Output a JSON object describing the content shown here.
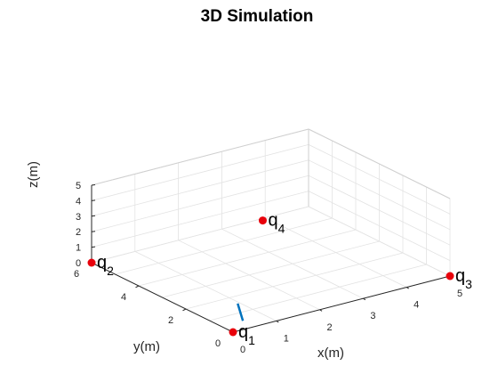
{
  "chart_data": {
    "type": "scatter",
    "title": "3D Simulation",
    "xlabel": "x(m)",
    "ylabel": "y(m)",
    "zlabel": "z(m)",
    "xlim": [
      0,
      5
    ],
    "ylim": [
      0,
      6
    ],
    "zlim": [
      0,
      5
    ],
    "xticks": [
      "0",
      "1",
      "2",
      "3",
      "4",
      "5"
    ],
    "yticks": [
      "0",
      "2",
      "4",
      "6"
    ],
    "zticks": [
      "0",
      "1",
      "2",
      "3",
      "4",
      "5"
    ],
    "grid": true,
    "view": "3d-isometric",
    "points": [
      {
        "label": "q",
        "sub": "1",
        "x": 0,
        "y": 0,
        "z": 0
      },
      {
        "label": "q",
        "sub": "2",
        "x": 0,
        "y": 6,
        "z": 0
      },
      {
        "label": "q",
        "sub": "3",
        "x": 5,
        "y": 0,
        "z": 0
      },
      {
        "label": "q",
        "sub": "4",
        "x": 1.5,
        "y": 1.5,
        "z": 5
      }
    ],
    "segment": {
      "start": {
        "x": 0.5,
        "y": 0.5,
        "z": 0
      },
      "end": {
        "x": 0.95,
        "y": 1.55,
        "z": 0
      }
    },
    "colors": {
      "point": "#e8000b",
      "segment": "#0072bd",
      "grid": "#e3e3e3",
      "axis": "#262626",
      "box": "#cfcfcf"
    }
  }
}
